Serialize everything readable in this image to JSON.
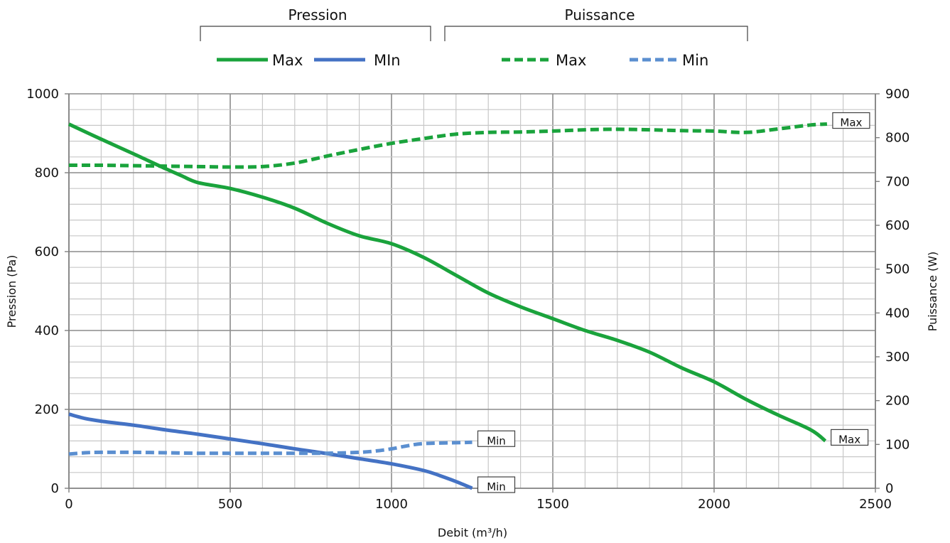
{
  "chart_data": {
    "type": "line",
    "xlabel": "Debit (m³/h)",
    "ylabel_left": "Pression (Pa)",
    "ylabel_right": "Puissance (W)",
    "xlim": [
      0,
      2500
    ],
    "ylim_left": [
      0,
      1000
    ],
    "ylim_right": [
      0,
      900
    ],
    "x_ticks": [
      "0",
      "500",
      "1000",
      "1500",
      "2000",
      "2500"
    ],
    "y_left_ticks": [
      "0",
      "200",
      "400",
      "600",
      "800",
      "1000"
    ],
    "y_right_ticks": [
      "0",
      "100",
      "200",
      "300",
      "400",
      "500",
      "600",
      "700",
      "800",
      "900"
    ],
    "grid": true,
    "legend_placement": "top",
    "legend_groups": [
      {
        "title": "Pression",
        "entries": [
          "Max",
          "MIn"
        ]
      },
      {
        "title": "Puissance",
        "entries": [
          "Max",
          "Min"
        ]
      }
    ],
    "series": [
      {
        "name": "Max",
        "group": "Pression",
        "axis": "left",
        "style": "solid",
        "color": "#1aa33c",
        "x": [
          0,
          100,
          200,
          300,
          350,
          400,
          500,
          600,
          700,
          800,
          900,
          1000,
          1100,
          1200,
          1300,
          1400,
          1500,
          1600,
          1700,
          1800,
          1900,
          2000,
          2100,
          2200,
          2300,
          2345
        ],
        "y": [
          923,
          885,
          848,
          810,
          792,
          775,
          760,
          738,
          710,
          672,
          640,
          620,
          585,
          540,
          495,
          460,
          430,
          400,
          375,
          345,
          305,
          270,
          225,
          185,
          148,
          120
        ]
      },
      {
        "name": "MIn",
        "group": "Pression",
        "axis": "left",
        "style": "solid",
        "color": "#4472c4",
        "x": [
          0,
          50,
          100,
          200,
          300,
          400,
          500,
          600,
          700,
          800,
          900,
          1000,
          1100,
          1150,
          1200,
          1250
        ],
        "y": [
          188,
          177,
          170,
          160,
          148,
          137,
          125,
          113,
          100,
          88,
          75,
          62,
          45,
          32,
          17,
          0
        ]
      },
      {
        "name": "Max",
        "group": "Puissance",
        "axis": "right",
        "style": "dashed",
        "color": "#1aa33c",
        "x": [
          0,
          100,
          200,
          300,
          400,
          500,
          600,
          700,
          800,
          900,
          1000,
          1100,
          1200,
          1300,
          1400,
          1500,
          1600,
          1700,
          1800,
          1900,
          2000,
          2100,
          2200,
          2300,
          2350
        ],
        "y": [
          737,
          737,
          736,
          735,
          734,
          733,
          734,
          742,
          758,
          773,
          787,
          798,
          808,
          812,
          813,
          815,
          818,
          819,
          818,
          816,
          815,
          812,
          820,
          829,
          831
        ]
      },
      {
        "name": "Min",
        "group": "Puissance",
        "axis": "right",
        "style": "dashed",
        "color": "#5b8fd0",
        "x": [
          0,
          50,
          100,
          200,
          300,
          400,
          500,
          600,
          700,
          800,
          900,
          950,
          1000,
          1050,
          1100,
          1200,
          1250,
          1250
        ],
        "y": [
          78,
          81,
          82,
          82,
          81,
          80,
          80,
          80,
          80,
          80,
          82,
          85,
          90,
          97,
          102,
          104,
          105,
          105
        ]
      }
    ],
    "annotations": [
      {
        "text": "Max",
        "series_index": 2,
        "x": 2350,
        "axis": "right",
        "y": 831
      },
      {
        "text": "Max",
        "series_index": 0,
        "x": 2345,
        "axis": "left",
        "y": 120
      },
      {
        "text": "Min",
        "series_index": 3,
        "x": 1250,
        "axis": "right",
        "y": 105
      },
      {
        "text": "Min",
        "series_index": 1,
        "x": 1250,
        "axis": "left",
        "y": 0
      }
    ]
  }
}
